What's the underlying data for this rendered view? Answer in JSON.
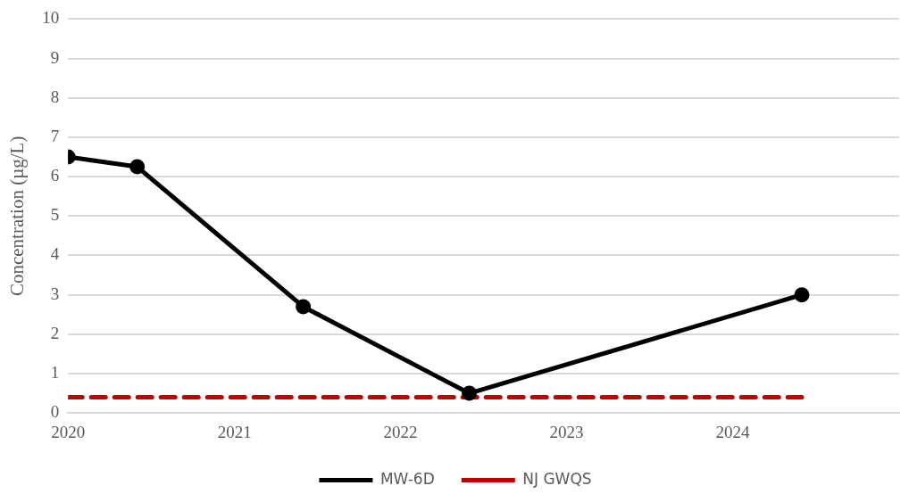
{
  "chart_data": {
    "type": "line",
    "ylabel": "Concentration (µg/L)",
    "xlim": [
      "2020",
      "2025"
    ],
    "xticks": [
      "2020",
      "2021",
      "2022",
      "2023",
      "2024"
    ],
    "ylim": [
      0,
      10
    ],
    "yticks": [
      0,
      1,
      2,
      3,
      4,
      5,
      6,
      7,
      8,
      9,
      10
    ],
    "grid": "y",
    "legend": "bottom",
    "series": [
      {
        "name": "MW-6D",
        "color": "#000000",
        "marker": "circle",
        "line_style": "solid",
        "x": [
          "2020-01",
          "2020-06",
          "2021-06",
          "2022-06",
          "2024-06"
        ],
        "values": [
          6.5,
          6.25,
          2.7,
          0.5,
          3.0
        ]
      },
      {
        "name": "NJ GWQS",
        "color": "#c00000",
        "marker": "none",
        "line_style": "dashed",
        "x": [
          "2020-01",
          "2024-06"
        ],
        "values": [
          0.4,
          0.4
        ]
      }
    ]
  }
}
